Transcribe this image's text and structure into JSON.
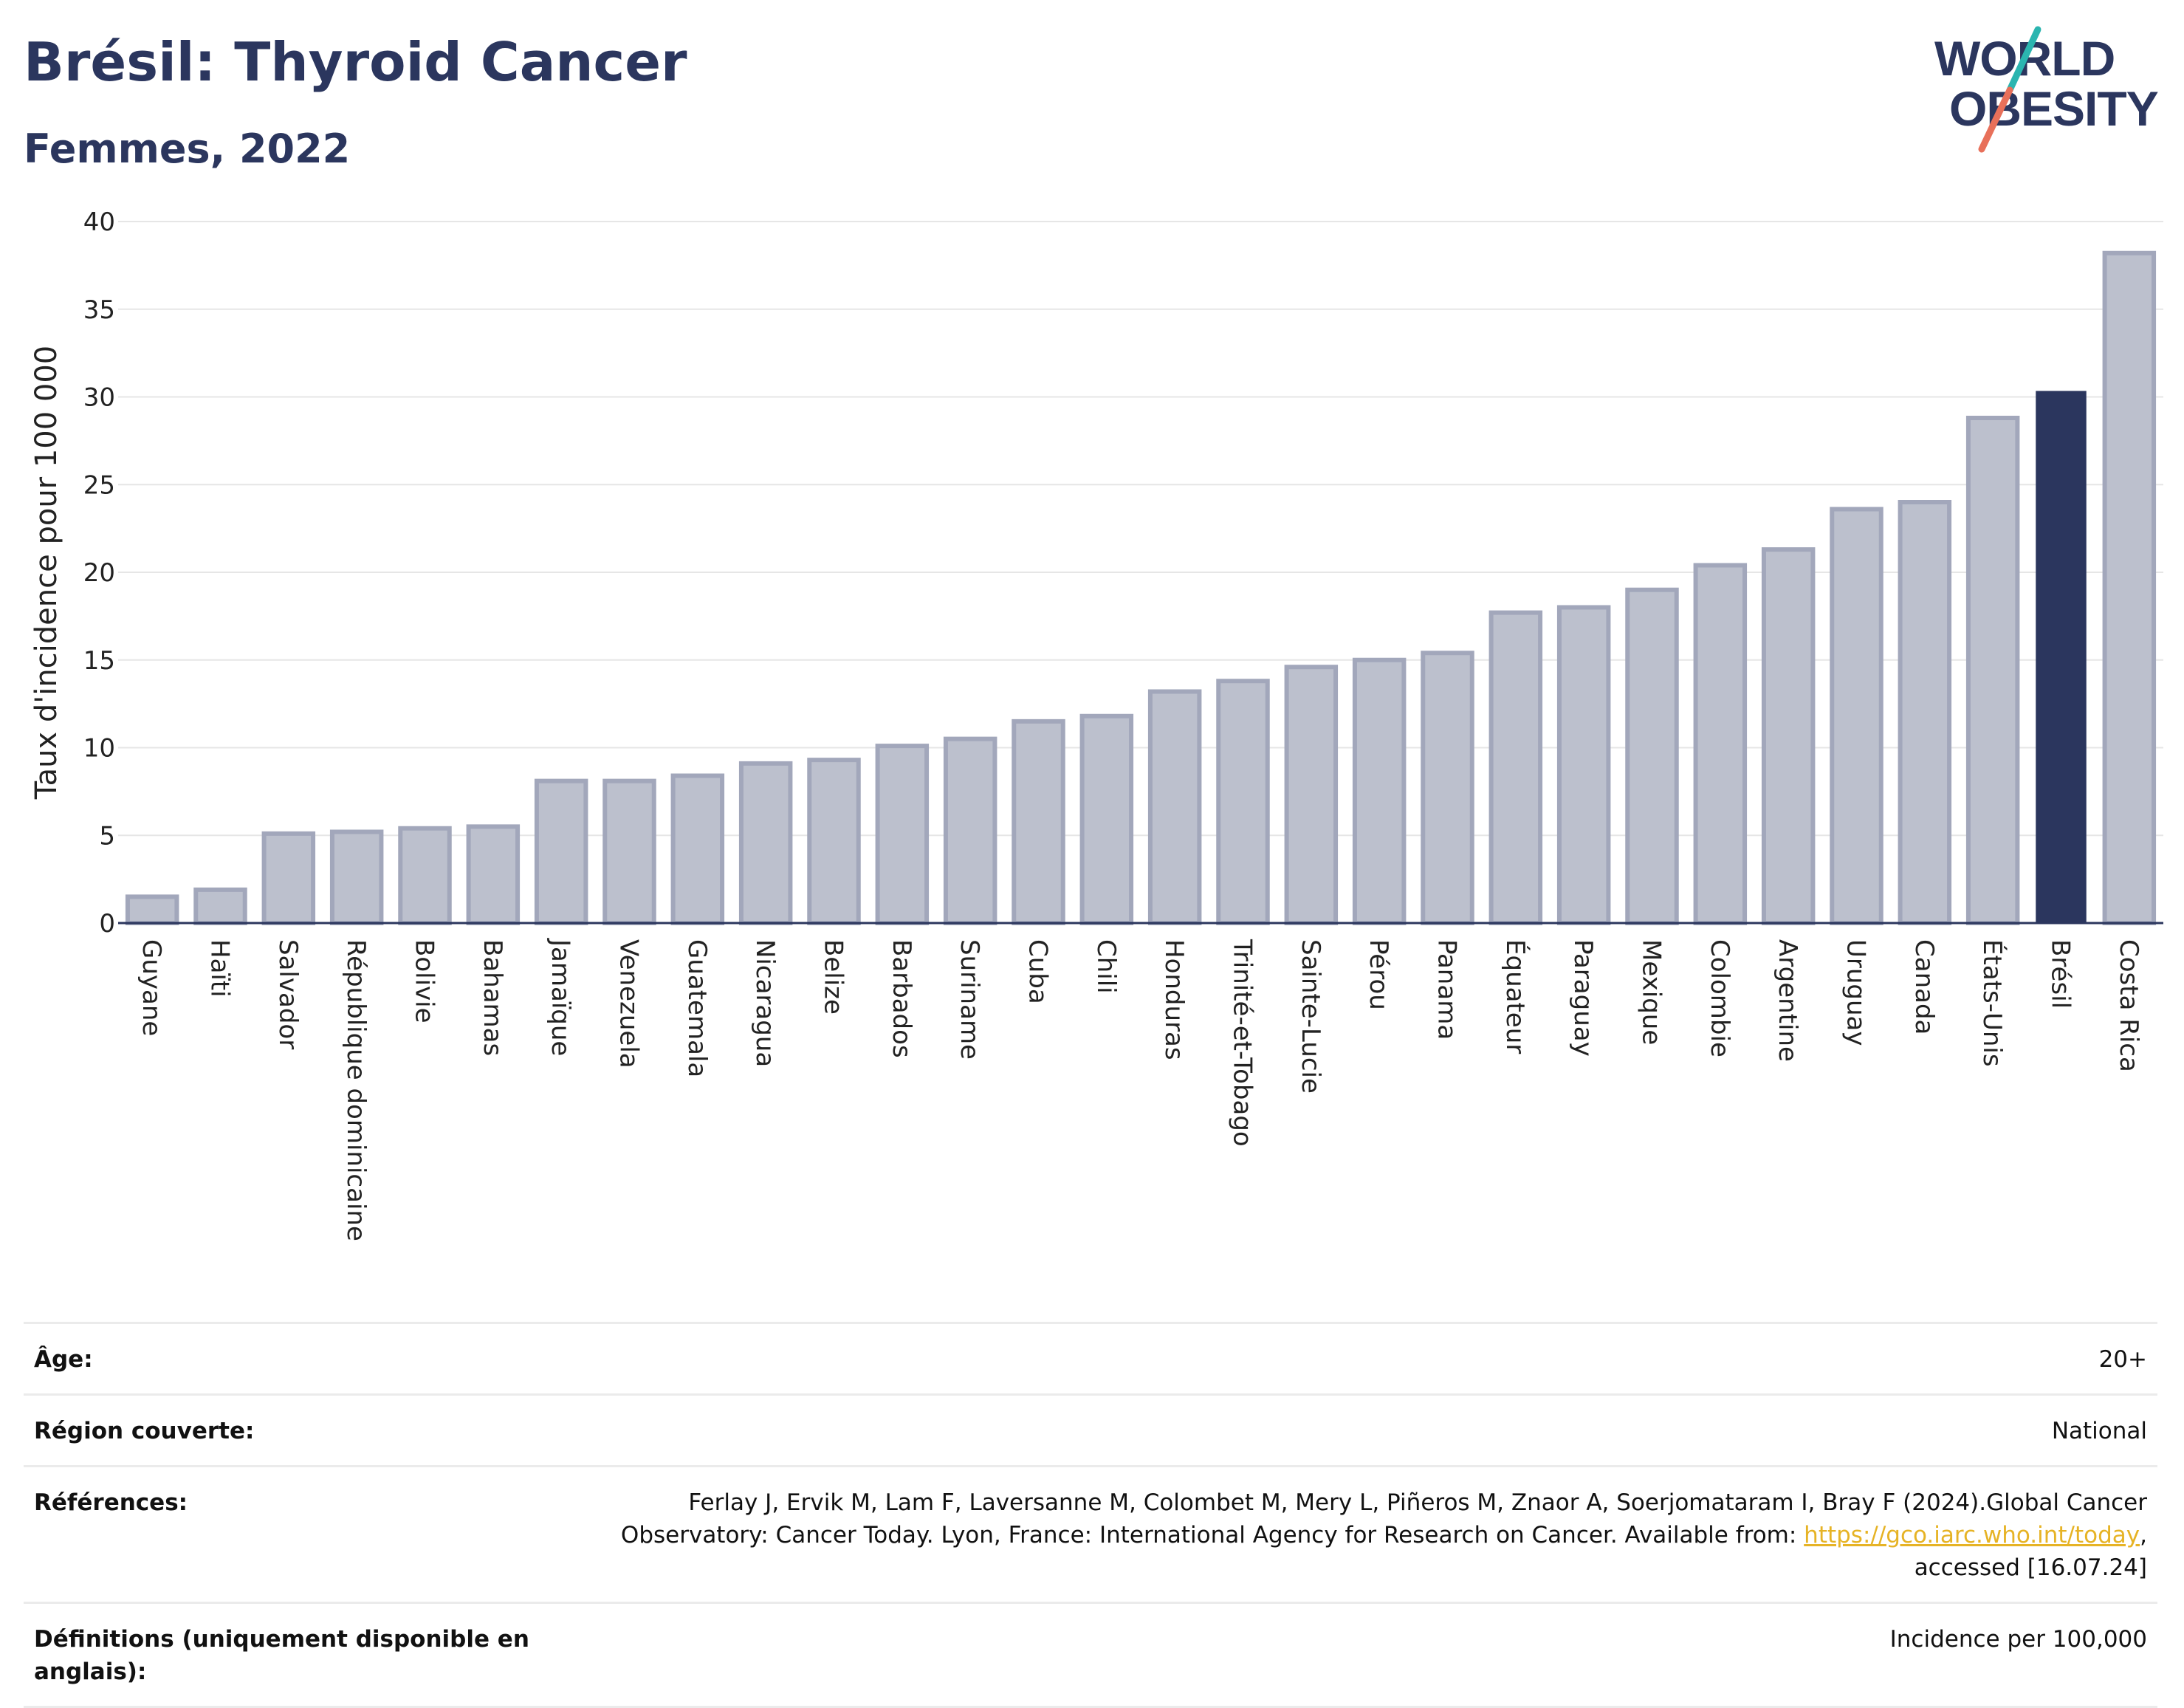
{
  "header": {
    "title": "Brésil: Thyroid Cancer",
    "subtitle": "Femmes, 2022"
  },
  "logo": {
    "line1": "WORLD",
    "line2": "OBESITY",
    "colors": {
      "text": "#2b365e",
      "slash_top": "#2bb5b0",
      "slash_bottom": "#e8705a"
    }
  },
  "chart_data": {
    "type": "bar",
    "title": "Brésil: Thyroid Cancer",
    "subtitle": "Femmes, 2022",
    "xlabel": "",
    "ylabel": "Taux d'incidence pour 100 000",
    "ylim": [
      0,
      40
    ],
    "yticks": [
      0,
      5,
      10,
      15,
      20,
      25,
      30,
      35,
      40
    ],
    "grid": true,
    "highlight": "Brésil",
    "colors": {
      "bar": "#bcc0cd",
      "bar_edge": "#a2a7bb",
      "highlight": "#2b365e",
      "grid": "#e6e6e6",
      "axis": "#2b365e"
    },
    "categories": [
      "Guyane",
      "Haïti",
      "Salvador",
      "République dominicaine",
      "Bolivie",
      "Bahamas",
      "Jamaïque",
      "Venezuela",
      "Guatemala",
      "Nicaragua",
      "Belize",
      "Barbados",
      "Suriname",
      "Cuba",
      "Chili",
      "Honduras",
      "Trinité-et-Tobago",
      "Sainte-Lucie",
      "Pérou",
      "Panama",
      "Équateur",
      "Paraguay",
      "Mexique",
      "Colombie",
      "Argentine",
      "Uruguay",
      "Canada",
      "États-Unis",
      "Brésil",
      "Costa Rica"
    ],
    "values": [
      1.5,
      1.9,
      5.1,
      5.2,
      5.4,
      5.5,
      8.1,
      8.1,
      8.4,
      9.1,
      9.3,
      10.1,
      10.5,
      11.5,
      11.8,
      13.2,
      13.8,
      14.6,
      15.0,
      15.4,
      17.7,
      18.0,
      19.0,
      20.4,
      21.3,
      23.6,
      24.0,
      28.8,
      30.3,
      38.2
    ]
  },
  "info": {
    "rows": [
      {
        "label": "Âge:",
        "value": "20+"
      },
      {
        "label": "Région couverte:",
        "value": "National"
      },
      {
        "label": "Références:",
        "value_before": "Ferlay J, Ervik M, Lam F, Laversanne M, Colombet M, Mery L, Piñeros M, Znaor A, Soerjomataram I, Bray F (2024).Global Cancer Observatory: Cancer Today. Lyon, France: International Agency for Research on Cancer. Available from: ",
        "link": "https://gco.iarc.who.int/today",
        "value_after": ", accessed [16.07.24]"
      },
      {
        "label": "Définitions (uniquement disponible en anglais):",
        "value": "Incidence per 100,000"
      }
    ]
  }
}
